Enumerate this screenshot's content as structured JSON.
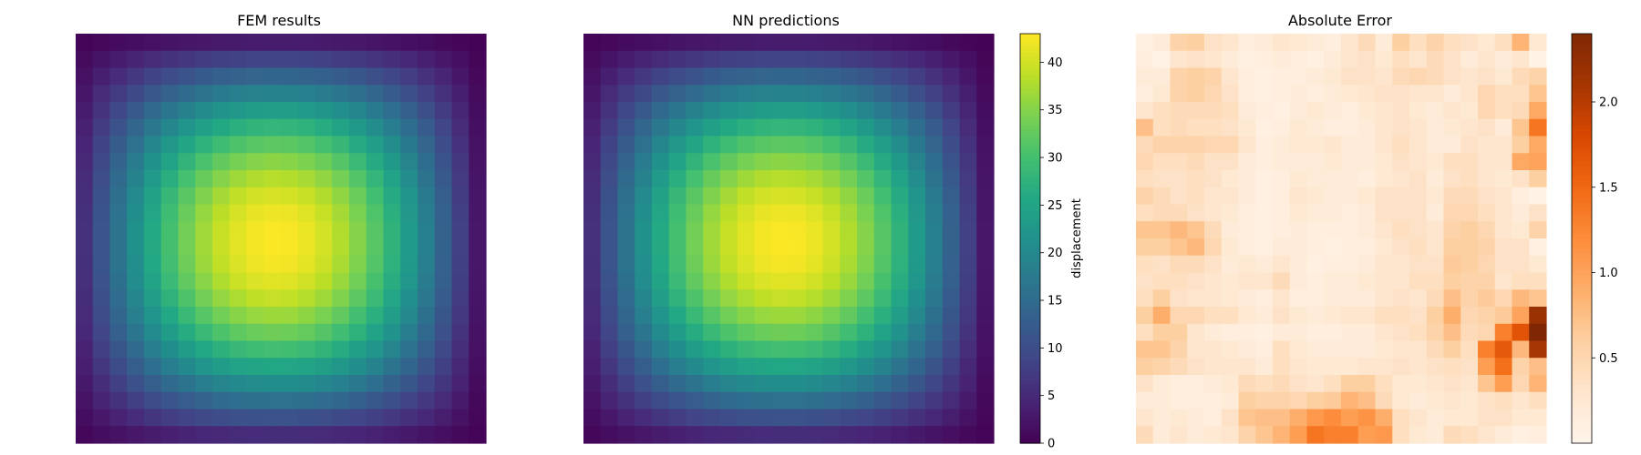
{
  "chart_data": [
    {
      "type": "heatmap",
      "title": "FEM results",
      "grid": [
        24,
        24
      ],
      "colormap": "viridis",
      "vmin": 0,
      "vmax": 43,
      "description": "radially symmetric displacement field peaking near the centre (~43) and falling to ~0 at the corners",
      "peak_value": 43
    },
    {
      "type": "heatmap",
      "title": "NN predictions",
      "grid": [
        24,
        24
      ],
      "colormap": "viridis",
      "vmin": 0,
      "vmax": 43,
      "peak_value": 43,
      "colorbar": {
        "label": "displacement",
        "ticks": [
          0,
          5,
          10,
          15,
          20,
          25,
          30,
          35,
          40
        ],
        "range": [
          0,
          43
        ]
      }
    },
    {
      "type": "heatmap",
      "title": "Absolute Error",
      "grid": [
        24,
        24
      ],
      "colormap": "oranges",
      "vmin": 0,
      "vmax": 2.4,
      "colorbar": {
        "label": "",
        "ticks": [
          0.5,
          1.0,
          1.5,
          2.0
        ],
        "range": [
          0,
          2.4
        ]
      },
      "values": [
        [
          0.1,
          0.2,
          0.55,
          0.6,
          0.35,
          0.3,
          0.15,
          0.2,
          0.3,
          0.25,
          0.2,
          0.15,
          0.3,
          0.45,
          0.2,
          0.6,
          0.4,
          0.55,
          0.4,
          0.35,
          0.25,
          0.4,
          0.85,
          0.25
        ],
        [
          0.15,
          0.05,
          0.3,
          0.35,
          0.3,
          0.2,
          0.1,
          0.15,
          0.2,
          0.15,
          0.1,
          0.2,
          0.3,
          0.35,
          0.25,
          0.4,
          0.3,
          0.45,
          0.35,
          0.2,
          0.3,
          0.2,
          0.3,
          0.05
        ],
        [
          0.2,
          0.2,
          0.55,
          0.6,
          0.55,
          0.3,
          0.15,
          0.1,
          0.15,
          0.15,
          0.2,
          0.25,
          0.35,
          0.35,
          0.3,
          0.45,
          0.5,
          0.45,
          0.35,
          0.3,
          0.35,
          0.25,
          0.45,
          0.55
        ],
        [
          0.15,
          0.25,
          0.55,
          0.6,
          0.5,
          0.35,
          0.15,
          0.1,
          0.15,
          0.2,
          0.15,
          0.2,
          0.25,
          0.3,
          0.35,
          0.35,
          0.3,
          0.3,
          0.2,
          0.3,
          0.5,
          0.4,
          0.4,
          0.7
        ],
        [
          0.3,
          0.4,
          0.45,
          0.45,
          0.45,
          0.4,
          0.2,
          0.15,
          0.1,
          0.2,
          0.25,
          0.2,
          0.15,
          0.25,
          0.3,
          0.35,
          0.25,
          0.2,
          0.3,
          0.25,
          0.5,
          0.4,
          0.45,
          0.95
        ],
        [
          0.75,
          0.4,
          0.45,
          0.4,
          0.4,
          0.35,
          0.25,
          0.1,
          0.15,
          0.25,
          0.2,
          0.15,
          0.15,
          0.2,
          0.3,
          0.35,
          0.3,
          0.2,
          0.25,
          0.3,
          0.35,
          0.2,
          0.7,
          1.4
        ],
        [
          0.45,
          0.55,
          0.55,
          0.55,
          0.5,
          0.5,
          0.3,
          0.15,
          0.2,
          0.25,
          0.25,
          0.3,
          0.2,
          0.2,
          0.3,
          0.4,
          0.3,
          0.2,
          0.2,
          0.35,
          0.3,
          0.3,
          0.6,
          0.95
        ],
        [
          0.5,
          0.4,
          0.4,
          0.45,
          0.35,
          0.35,
          0.2,
          0.15,
          0.2,
          0.2,
          0.2,
          0.25,
          0.2,
          0.2,
          0.25,
          0.35,
          0.3,
          0.25,
          0.4,
          0.4,
          0.3,
          0.3,
          0.95,
          1.0
        ],
        [
          0.4,
          0.35,
          0.35,
          0.4,
          0.35,
          0.25,
          0.2,
          0.1,
          0.15,
          0.25,
          0.2,
          0.2,
          0.2,
          0.15,
          0.25,
          0.3,
          0.35,
          0.2,
          0.35,
          0.4,
          0.3,
          0.25,
          0.35,
          0.6
        ],
        [
          0.55,
          0.45,
          0.35,
          0.4,
          0.3,
          0.3,
          0.2,
          0.1,
          0.15,
          0.3,
          0.25,
          0.2,
          0.2,
          0.25,
          0.35,
          0.35,
          0.35,
          0.25,
          0.45,
          0.45,
          0.35,
          0.3,
          0.15,
          0.05
        ],
        [
          0.4,
          0.45,
          0.45,
          0.35,
          0.3,
          0.25,
          0.15,
          0.1,
          0.15,
          0.25,
          0.2,
          0.2,
          0.15,
          0.2,
          0.35,
          0.35,
          0.35,
          0.2,
          0.5,
          0.5,
          0.4,
          0.3,
          0.2,
          0.35
        ],
        [
          0.7,
          0.7,
          0.8,
          0.7,
          0.45,
          0.2,
          0.15,
          0.1,
          0.15,
          0.2,
          0.15,
          0.15,
          0.15,
          0.2,
          0.3,
          0.4,
          0.35,
          0.3,
          0.55,
          0.6,
          0.5,
          0.3,
          0.25,
          0.55
        ],
        [
          0.6,
          0.6,
          0.7,
          0.8,
          0.5,
          0.25,
          0.15,
          0.1,
          0.2,
          0.2,
          0.15,
          0.1,
          0.15,
          0.15,
          0.25,
          0.35,
          0.4,
          0.3,
          0.6,
          0.6,
          0.55,
          0.35,
          0.35,
          0.1
        ],
        [
          0.4,
          0.35,
          0.45,
          0.45,
          0.35,
          0.2,
          0.25,
          0.2,
          0.3,
          0.2,
          0.1,
          0.15,
          0.15,
          0.2,
          0.3,
          0.3,
          0.35,
          0.35,
          0.65,
          0.6,
          0.5,
          0.35,
          0.35,
          0.25
        ],
        [
          0.35,
          0.4,
          0.4,
          0.35,
          0.3,
          0.25,
          0.3,
          0.3,
          0.45,
          0.2,
          0.15,
          0.2,
          0.2,
          0.25,
          0.3,
          0.3,
          0.4,
          0.4,
          0.6,
          0.55,
          0.55,
          0.3,
          0.4,
          0.4
        ],
        [
          0.4,
          0.6,
          0.35,
          0.3,
          0.3,
          0.25,
          0.2,
          0.15,
          0.3,
          0.15,
          0.15,
          0.2,
          0.2,
          0.2,
          0.3,
          0.35,
          0.3,
          0.45,
          0.75,
          0.55,
          0.65,
          0.5,
          0.8,
          0.7
        ],
        [
          0.6,
          0.9,
          0.5,
          0.5,
          0.4,
          0.4,
          0.25,
          0.2,
          0.35,
          0.25,
          0.2,
          0.25,
          0.3,
          0.3,
          0.4,
          0.4,
          0.35,
          0.6,
          0.9,
          0.5,
          0.55,
          0.65,
          1.0,
          2.2
        ],
        [
          0.4,
          0.6,
          0.6,
          0.3,
          0.2,
          0.15,
          0.15,
          0.1,
          0.2,
          0.2,
          0.15,
          0.15,
          0.2,
          0.2,
          0.3,
          0.35,
          0.4,
          0.55,
          0.75,
          0.45,
          0.5,
          1.3,
          1.7,
          2.4
        ],
        [
          0.7,
          0.7,
          0.55,
          0.3,
          0.3,
          0.25,
          0.2,
          0.15,
          0.4,
          0.25,
          0.2,
          0.2,
          0.2,
          0.2,
          0.25,
          0.3,
          0.3,
          0.45,
          0.6,
          0.4,
          1.3,
          1.65,
          0.8,
          2.1
        ],
        [
          0.6,
          0.55,
          0.45,
          0.35,
          0.3,
          0.3,
          0.3,
          0.2,
          0.4,
          0.3,
          0.25,
          0.25,
          0.25,
          0.3,
          0.3,
          0.35,
          0.3,
          0.35,
          0.4,
          0.35,
          1.05,
          1.45,
          0.55,
          0.75
        ],
        [
          0.35,
          0.2,
          0.15,
          0.15,
          0.2,
          0.25,
          0.45,
          0.4,
          0.45,
          0.35,
          0.3,
          0.4,
          0.6,
          0.6,
          0.4,
          0.25,
          0.25,
          0.3,
          0.35,
          0.3,
          0.7,
          1.05,
          0.5,
          0.85
        ],
        [
          0.2,
          0.2,
          0.15,
          0.15,
          0.15,
          0.2,
          0.6,
          0.55,
          0.55,
          0.5,
          0.6,
          0.65,
          0.85,
          0.75,
          0.45,
          0.25,
          0.2,
          0.25,
          0.3,
          0.25,
          0.35,
          0.4,
          0.3,
          0.4
        ],
        [
          0.3,
          0.2,
          0.25,
          0.2,
          0.15,
          0.35,
          0.7,
          0.75,
          0.75,
          0.9,
          1.1,
          1.2,
          1.05,
          1.15,
          0.9,
          0.4,
          0.3,
          0.2,
          0.25,
          0.25,
          0.35,
          0.35,
          0.25,
          0.25
        ],
        [
          0.45,
          0.2,
          0.3,
          0.2,
          0.25,
          0.3,
          0.55,
          0.7,
          0.85,
          1.05,
          1.4,
          1.3,
          1.3,
          1.05,
          1.1,
          0.4,
          0.25,
          0.2,
          0.45,
          0.4,
          0.3,
          0.2,
          0.1,
          0.15
        ]
      ]
    }
  ]
}
